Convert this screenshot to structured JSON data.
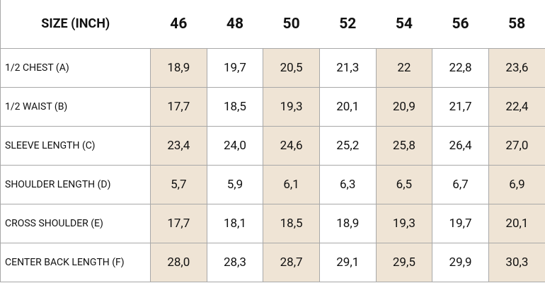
{
  "table": {
    "header": [
      "SIZE (INCH)",
      "46",
      "48",
      "50",
      "52",
      "54",
      "56",
      "58"
    ],
    "rows": [
      [
        "1/2 CHEST (A)",
        "18,9",
        "19,7",
        "20,5",
        "21,3",
        "22",
        "22,8",
        "23,6"
      ],
      [
        "1/2 WAIST (B)",
        "17,7",
        "18,5",
        "19,3",
        "20,1",
        "20,9",
        "21,7",
        "22,4"
      ],
      [
        "SLEEVE LENGTH (C)",
        "23,4",
        "24,0",
        "24,6",
        "25,2",
        "25,8",
        "26,4",
        "27,0"
      ],
      [
        "SHOULDER LENGTH (D)",
        "5,7",
        "5,9",
        "6,1",
        "6,3",
        "6,5",
        "6,7",
        "6,9"
      ],
      [
        "CROSS SHOULDER (E)",
        "17,7",
        "18,1",
        "18,5",
        "18,9",
        "19,3",
        "19,7",
        "20,1"
      ],
      [
        "CENTER BACK LENGTH (F)",
        "28,0",
        "28,3",
        "28,7",
        "29,1",
        "29,5",
        "29,9",
        "30,3"
      ]
    ]
  }
}
